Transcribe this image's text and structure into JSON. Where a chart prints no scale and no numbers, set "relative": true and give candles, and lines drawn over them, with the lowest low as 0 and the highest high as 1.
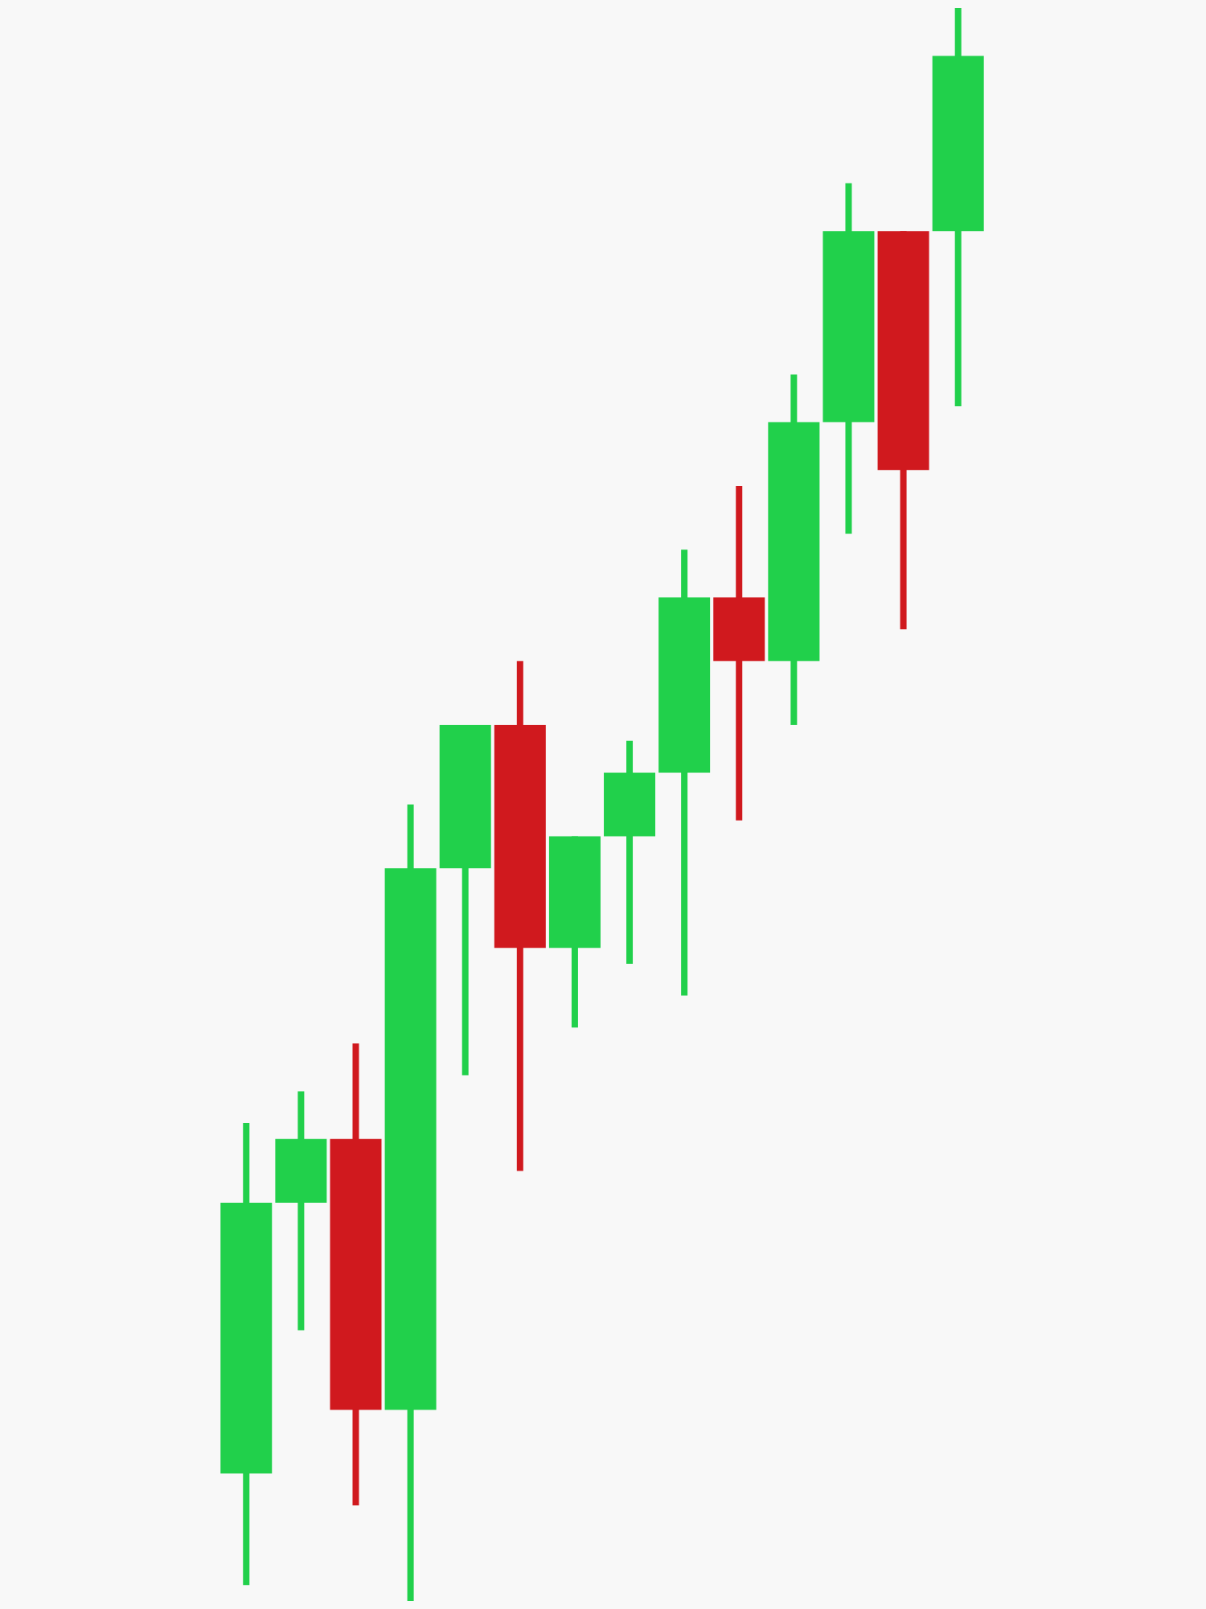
{
  "chart_data": {
    "type": "candlestick",
    "relative": true,
    "categories": [
      null,
      null,
      null,
      null,
      null,
      null,
      null,
      null,
      null,
      null,
      null,
      null,
      null,
      null
    ],
    "ohlc": [
      [
        0.08,
        0.3,
        0.01,
        0.25
      ],
      [
        0.25,
        0.32,
        0.17,
        0.29
      ],
      [
        0.29,
        0.35,
        0.06,
        0.12
      ],
      [
        0.12,
        0.5,
        0.0,
        0.46
      ],
      [
        0.46,
        0.55,
        0.33,
        0.55
      ],
      [
        0.55,
        0.59,
        0.27,
        0.41
      ],
      [
        0.41,
        0.48,
        0.36,
        0.48
      ],
      [
        0.48,
        0.54,
        0.4,
        0.52
      ],
      [
        0.52,
        0.66,
        0.38,
        0.63
      ],
      [
        0.63,
        0.7,
        0.49,
        0.59
      ],
      [
        0.59,
        0.77,
        0.55,
        0.74
      ],
      [
        0.74,
        0.89,
        0.67,
        0.86
      ],
      [
        0.86,
        0.86,
        0.61,
        0.71
      ],
      [
        0.86,
        1.0,
        0.75,
        0.97
      ]
    ],
    "colors": [
      "#21d04b",
      "#21d04b",
      "#d0191e",
      "#21d04b",
      "#21d04b",
      "#d0191e",
      "#21d04b",
      "#21d04b",
      "#21d04b",
      "#d0191e",
      "#21d04b",
      "#21d04b",
      "#d0191e",
      "#21d04b"
    ]
  }
}
